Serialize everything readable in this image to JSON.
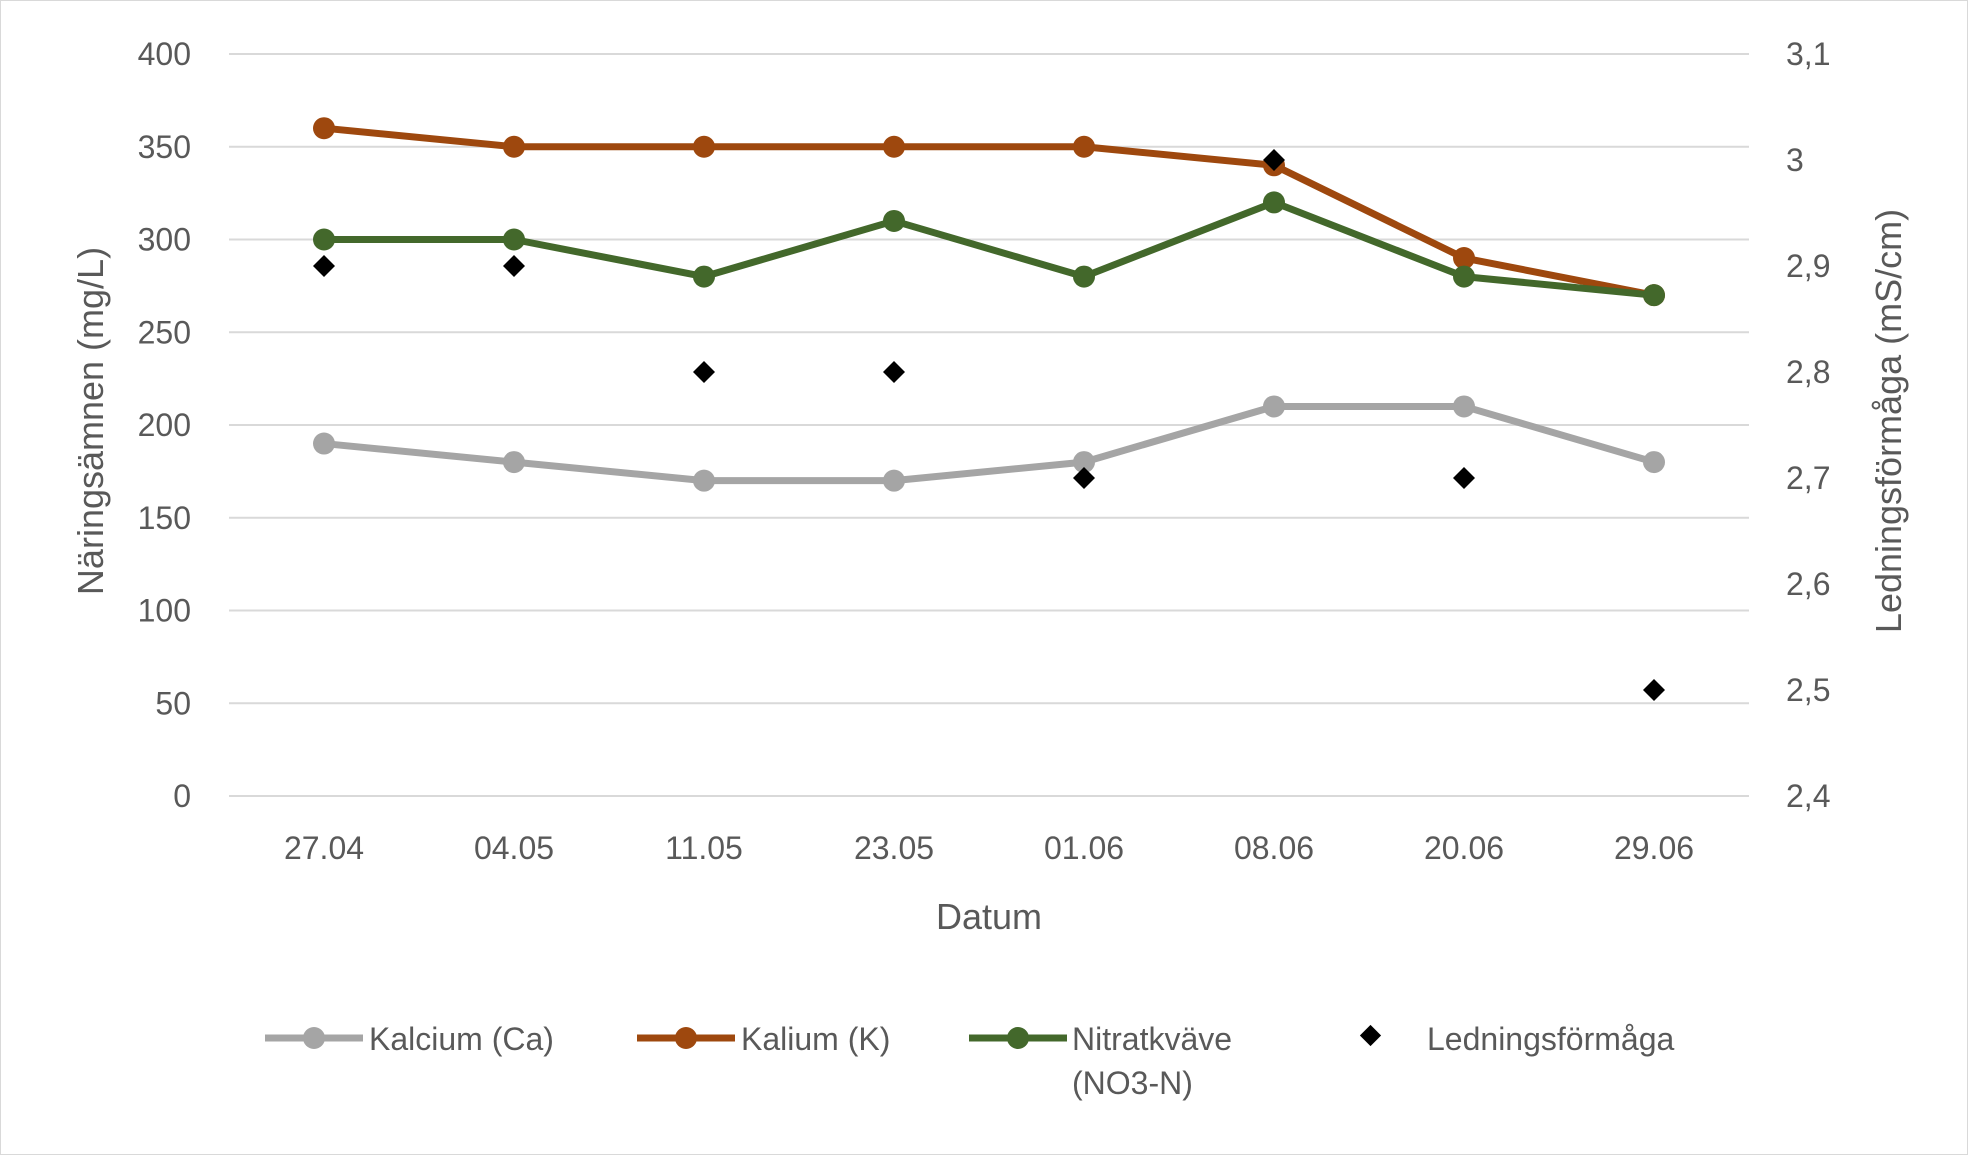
{
  "chart_data": {
    "type": "line",
    "categories": [
      "27.04",
      "04.05",
      "11.05",
      "23.05",
      "01.06",
      "08.06",
      "20.06",
      "29.06"
    ],
    "xlabel": "Datum",
    "ylabel": "Näringsämnen (mg/L)",
    "ylabel_right": "Ledningsförmåga (mS/cm)",
    "ylim": [
      0,
      400
    ],
    "ylim_right": [
      2.4,
      3.1
    ],
    "yticks": [
      "0",
      "50",
      "100",
      "150",
      "200",
      "250",
      "300",
      "350",
      "400"
    ],
    "yticks_right": [
      "2,4",
      "2,5",
      "2,6",
      "2,7",
      "2,8",
      "2,9",
      "3",
      "3,1"
    ],
    "grid": true,
    "legend_position": "bottom",
    "series": [
      {
        "name": "Kalcium (Ca)",
        "axis": "left",
        "style": "line-marker",
        "color": "#a5a5a5",
        "values": [
          190,
          180,
          170,
          170,
          180,
          210,
          210,
          180
        ]
      },
      {
        "name": "Kalium (K)",
        "axis": "left",
        "style": "line-marker",
        "color": "#9e480e",
        "values": [
          360,
          350,
          350,
          350,
          350,
          340,
          290,
          270
        ]
      },
      {
        "name": "Nitratkväve (NO3-N)",
        "axis": "left",
        "style": "line-marker",
        "color": "#43682b",
        "values": [
          300,
          300,
          280,
          310,
          280,
          320,
          280,
          270
        ]
      },
      {
        "name": "Ledningsförmåga",
        "axis": "right",
        "style": "scatter-diamond",
        "color": "#000000",
        "values": [
          2.9,
          2.9,
          2.8,
          2.8,
          2.7,
          3.0,
          2.7,
          2.5
        ]
      }
    ]
  }
}
